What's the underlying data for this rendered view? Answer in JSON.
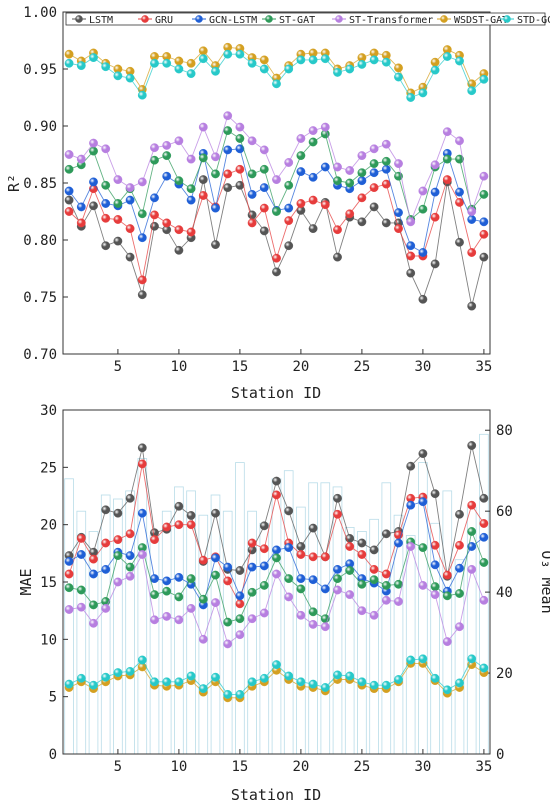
{
  "chart_data": [
    {
      "type": "line",
      "xlabel": "Station ID",
      "ylabel": "R²",
      "xlim": [
        0.5,
        35.5
      ],
      "ylim": [
        0.7,
        1.0
      ],
      "xticks": [
        5,
        10,
        15,
        20,
        25,
        30,
        35
      ],
      "xtick_labels": [
        "5",
        "10",
        "15",
        "20",
        "25",
        "30",
        "35"
      ],
      "yticks": [
        0.7,
        0.75,
        0.8,
        0.85,
        0.9,
        0.95,
        1.0
      ],
      "ytick_labels": [
        "0.70",
        "0.75",
        "0.80",
        "0.85",
        "0.90",
        "0.95",
        "1.00"
      ],
      "legend": "top",
      "x": [
        1,
        2,
        3,
        4,
        5,
        6,
        7,
        8,
        9,
        10,
        11,
        12,
        13,
        14,
        15,
        16,
        17,
        18,
        19,
        20,
        21,
        22,
        23,
        24,
        25,
        26,
        27,
        28,
        29,
        30,
        31,
        32,
        33,
        34,
        35
      ],
      "series": [
        {
          "name": "LSTM",
          "color": "#555555",
          "values": [
            0.835,
            0.812,
            0.83,
            0.795,
            0.799,
            0.785,
            0.752,
            0.812,
            0.809,
            0.791,
            0.802,
            0.853,
            0.796,
            0.846,
            0.848,
            0.822,
            0.808,
            0.772,
            0.795,
            0.826,
            0.81,
            0.833,
            0.785,
            0.82,
            0.816,
            0.829,
            0.815,
            0.815,
            0.771,
            0.748,
            0.779,
            0.851,
            0.798,
            0.742,
            0.785
          ]
        },
        {
          "name": "GRU",
          "color": "#e63c3c",
          "values": [
            0.825,
            0.815,
            0.845,
            0.819,
            0.818,
            0.81,
            0.765,
            0.822,
            0.815,
            0.809,
            0.807,
            0.839,
            0.829,
            0.858,
            0.862,
            0.815,
            0.828,
            0.784,
            0.817,
            0.832,
            0.835,
            0.831,
            0.809,
            0.823,
            0.837,
            0.846,
            0.849,
            0.81,
            0.786,
            0.786,
            0.82,
            0.853,
            0.833,
            0.789,
            0.805
          ]
        },
        {
          "name": "GCN-LSTM",
          "color": "#1f5fd6",
          "values": [
            0.843,
            0.829,
            0.851,
            0.832,
            0.83,
            0.835,
            0.802,
            0.837,
            0.856,
            0.849,
            0.835,
            0.876,
            0.828,
            0.879,
            0.88,
            0.84,
            0.846,
            0.826,
            0.828,
            0.86,
            0.855,
            0.864,
            0.848,
            0.845,
            0.852,
            0.859,
            0.862,
            0.824,
            0.795,
            0.789,
            0.842,
            0.876,
            0.842,
            0.818,
            0.816
          ]
        },
        {
          "name": "ST-GAT",
          "color": "#2e9a5a",
          "values": [
            0.862,
            0.866,
            0.878,
            0.848,
            0.832,
            0.845,
            0.823,
            0.87,
            0.874,
            0.852,
            0.845,
            0.872,
            0.858,
            0.896,
            0.889,
            0.858,
            0.862,
            0.825,
            0.848,
            0.874,
            0.886,
            0.893,
            0.852,
            0.85,
            0.859,
            0.867,
            0.869,
            0.856,
            0.818,
            0.827,
            0.864,
            0.871,
            0.871,
            0.827,
            0.84
          ]
        },
        {
          "name": "ST-Transformer",
          "color": "#b77fe0",
          "values": [
            0.875,
            0.871,
            0.885,
            0.88,
            0.853,
            0.846,
            0.851,
            0.881,
            0.883,
            0.887,
            0.871,
            0.899,
            0.873,
            0.909,
            0.899,
            0.887,
            0.879,
            0.853,
            0.868,
            0.889,
            0.896,
            0.899,
            0.864,
            0.861,
            0.874,
            0.88,
            0.884,
            0.867,
            0.816,
            0.843,
            0.866,
            0.895,
            0.887,
            0.825,
            0.856
          ]
        },
        {
          "name": "WSDST-GAT",
          "color": "#d4a021",
          "values": [
            0.963,
            0.957,
            0.964,
            0.955,
            0.95,
            0.948,
            0.932,
            0.961,
            0.961,
            0.957,
            0.955,
            0.966,
            0.953,
            0.969,
            0.968,
            0.96,
            0.958,
            0.942,
            0.953,
            0.963,
            0.964,
            0.964,
            0.95,
            0.953,
            0.96,
            0.964,
            0.962,
            0.951,
            0.929,
            0.934,
            0.956,
            0.967,
            0.962,
            0.937,
            0.946
          ]
        },
        {
          "name": "STD-GCN",
          "color": "#27c9c9",
          "values": [
            0.955,
            0.953,
            0.96,
            0.952,
            0.944,
            0.942,
            0.927,
            0.955,
            0.955,
            0.95,
            0.946,
            0.959,
            0.948,
            0.963,
            0.963,
            0.955,
            0.95,
            0.937,
            0.95,
            0.958,
            0.958,
            0.959,
            0.947,
            0.95,
            0.954,
            0.958,
            0.956,
            0.943,
            0.925,
            0.929,
            0.949,
            0.961,
            0.957,
            0.931,
            0.941
          ]
        }
      ]
    },
    {
      "type": "line",
      "xlabel": "Station ID",
      "ylabel": "MAE",
      "y2label": "O₃ Mean",
      "xlim": [
        0.5,
        35.5
      ],
      "ylim": [
        0,
        30
      ],
      "y2lim": [
        0,
        85
      ],
      "xticks": [
        5,
        10,
        15,
        20,
        25,
        30,
        35
      ],
      "xtick_labels": [
        "5",
        "10",
        "15",
        "20",
        "25",
        "30",
        "35"
      ],
      "yticks": [
        0,
        5,
        10,
        15,
        20,
        25,
        30
      ],
      "ytick_labels": [
        "0",
        "5",
        "10",
        "15",
        "20",
        "25",
        "30"
      ],
      "y2ticks": [
        0,
        20,
        40,
        60,
        80
      ],
      "y2tick_labels": [
        "0",
        "20",
        "40",
        "60",
        "80"
      ],
      "x": [
        1,
        2,
        3,
        4,
        5,
        6,
        7,
        8,
        9,
        10,
        11,
        12,
        13,
        14,
        15,
        16,
        17,
        18,
        19,
        20,
        21,
        22,
        23,
        24,
        25,
        26,
        27,
        28,
        29,
        30,
        31,
        32,
        33,
        34,
        35
      ],
      "o3_mean": {
        "color": "#b8dce8",
        "values": [
          68,
          60,
          55,
          64,
          63,
          65,
          73,
          54,
          60,
          66,
          65,
          59,
          64,
          60,
          72,
          60,
          57,
          68,
          70,
          61,
          67,
          67,
          66,
          56,
          55,
          58,
          67,
          59,
          54,
          72,
          57,
          65,
          48,
          61,
          79
        ]
      },
      "series": [
        {
          "name": "LSTM",
          "color": "#555555",
          "values": [
            17.3,
            18.9,
            17.6,
            21.3,
            21.0,
            22.3,
            26.7,
            19.3,
            19.6,
            21.6,
            20.8,
            16.8,
            21.0,
            16.1,
            16.0,
            17.8,
            19.9,
            23.8,
            21.2,
            18.1,
            19.7,
            17.2,
            22.3,
            18.8,
            18.4,
            17.8,
            19.2,
            19.4,
            25.1,
            26.2,
            22.7,
            15.5,
            20.9,
            26.9,
            22.3
          ]
        },
        {
          "name": "GRU",
          "color": "#e63c3c",
          "values": [
            15.7,
            18.8,
            17.0,
            18.4,
            18.7,
            19.2,
            25.3,
            18.7,
            19.8,
            20.0,
            20.0,
            16.9,
            17.2,
            15.1,
            13.1,
            18.4,
            17.9,
            22.6,
            18.4,
            17.4,
            17.2,
            17.2,
            20.9,
            18.1,
            17.4,
            16.1,
            15.7,
            19.1,
            22.3,
            22.4,
            18.2,
            15.6,
            18.2,
            21.7,
            20.1
          ]
        },
        {
          "name": "GCN-LSTM",
          "color": "#1f5fd6",
          "values": [
            16.8,
            17.4,
            15.7,
            16.1,
            17.6,
            17.3,
            21.0,
            15.3,
            15.1,
            15.4,
            14.8,
            13.0,
            17.1,
            16.3,
            13.8,
            16.3,
            16.4,
            17.8,
            18.0,
            15.3,
            15.2,
            14.4,
            16.1,
            16.6,
            15.3,
            14.9,
            14.2,
            18.4,
            21.7,
            22.0,
            16.5,
            14.2,
            16.2,
            18.1,
            18.9
          ]
        },
        {
          "name": "ST-GAT",
          "color": "#2e9a5a",
          "values": [
            14.5,
            14.3,
            13.0,
            13.3,
            17.3,
            16.3,
            18.0,
            13.9,
            14.2,
            13.7,
            15.3,
            13.5,
            15.6,
            11.5,
            11.8,
            14.1,
            14.7,
            17.1,
            15.3,
            14.4,
            12.4,
            11.8,
            15.3,
            16.0,
            14.8,
            15.2,
            14.7,
            14.8,
            18.5,
            18.0,
            14.6,
            13.8,
            14.0,
            19.4,
            16.7
          ]
        },
        {
          "name": "ST-Transformer",
          "color": "#b77fe0",
          "values": [
            12.6,
            12.8,
            11.4,
            12.7,
            15.0,
            15.5,
            17.4,
            11.7,
            12.0,
            11.7,
            12.7,
            10.0,
            13.2,
            9.6,
            10.4,
            11.8,
            12.3,
            15.7,
            13.7,
            12.1,
            11.3,
            11.1,
            14.3,
            13.9,
            12.5,
            12.1,
            13.4,
            13.3,
            18.1,
            14.7,
            13.9,
            9.8,
            11.1,
            16.1,
            13.4
          ]
        },
        {
          "name": "WSDST-GAT",
          "color": "#d4a021",
          "values": [
            5.8,
            6.3,
            5.7,
            6.3,
            6.8,
            6.9,
            7.6,
            6.0,
            5.9,
            6.0,
            6.4,
            5.4,
            6.3,
            4.9,
            4.9,
            5.9,
            6.3,
            7.3,
            6.5,
            5.9,
            5.8,
            5.5,
            6.5,
            6.5,
            6.0,
            5.7,
            5.7,
            6.3,
            7.9,
            7.9,
            6.4,
            5.3,
            5.8,
            7.8,
            7.1
          ]
        },
        {
          "name": "STD-GCN",
          "color": "#27c9c9",
          "values": [
            6.1,
            6.6,
            6.0,
            6.7,
            7.1,
            7.2,
            8.2,
            6.3,
            6.3,
            6.3,
            6.8,
            5.7,
            6.7,
            5.2,
            5.2,
            6.3,
            6.6,
            7.8,
            6.8,
            6.3,
            6.1,
            5.8,
            6.9,
            6.8,
            6.3,
            6.0,
            6.0,
            6.5,
            8.2,
            8.3,
            6.6,
            5.6,
            6.2,
            8.3,
            7.5
          ]
        }
      ]
    }
  ]
}
